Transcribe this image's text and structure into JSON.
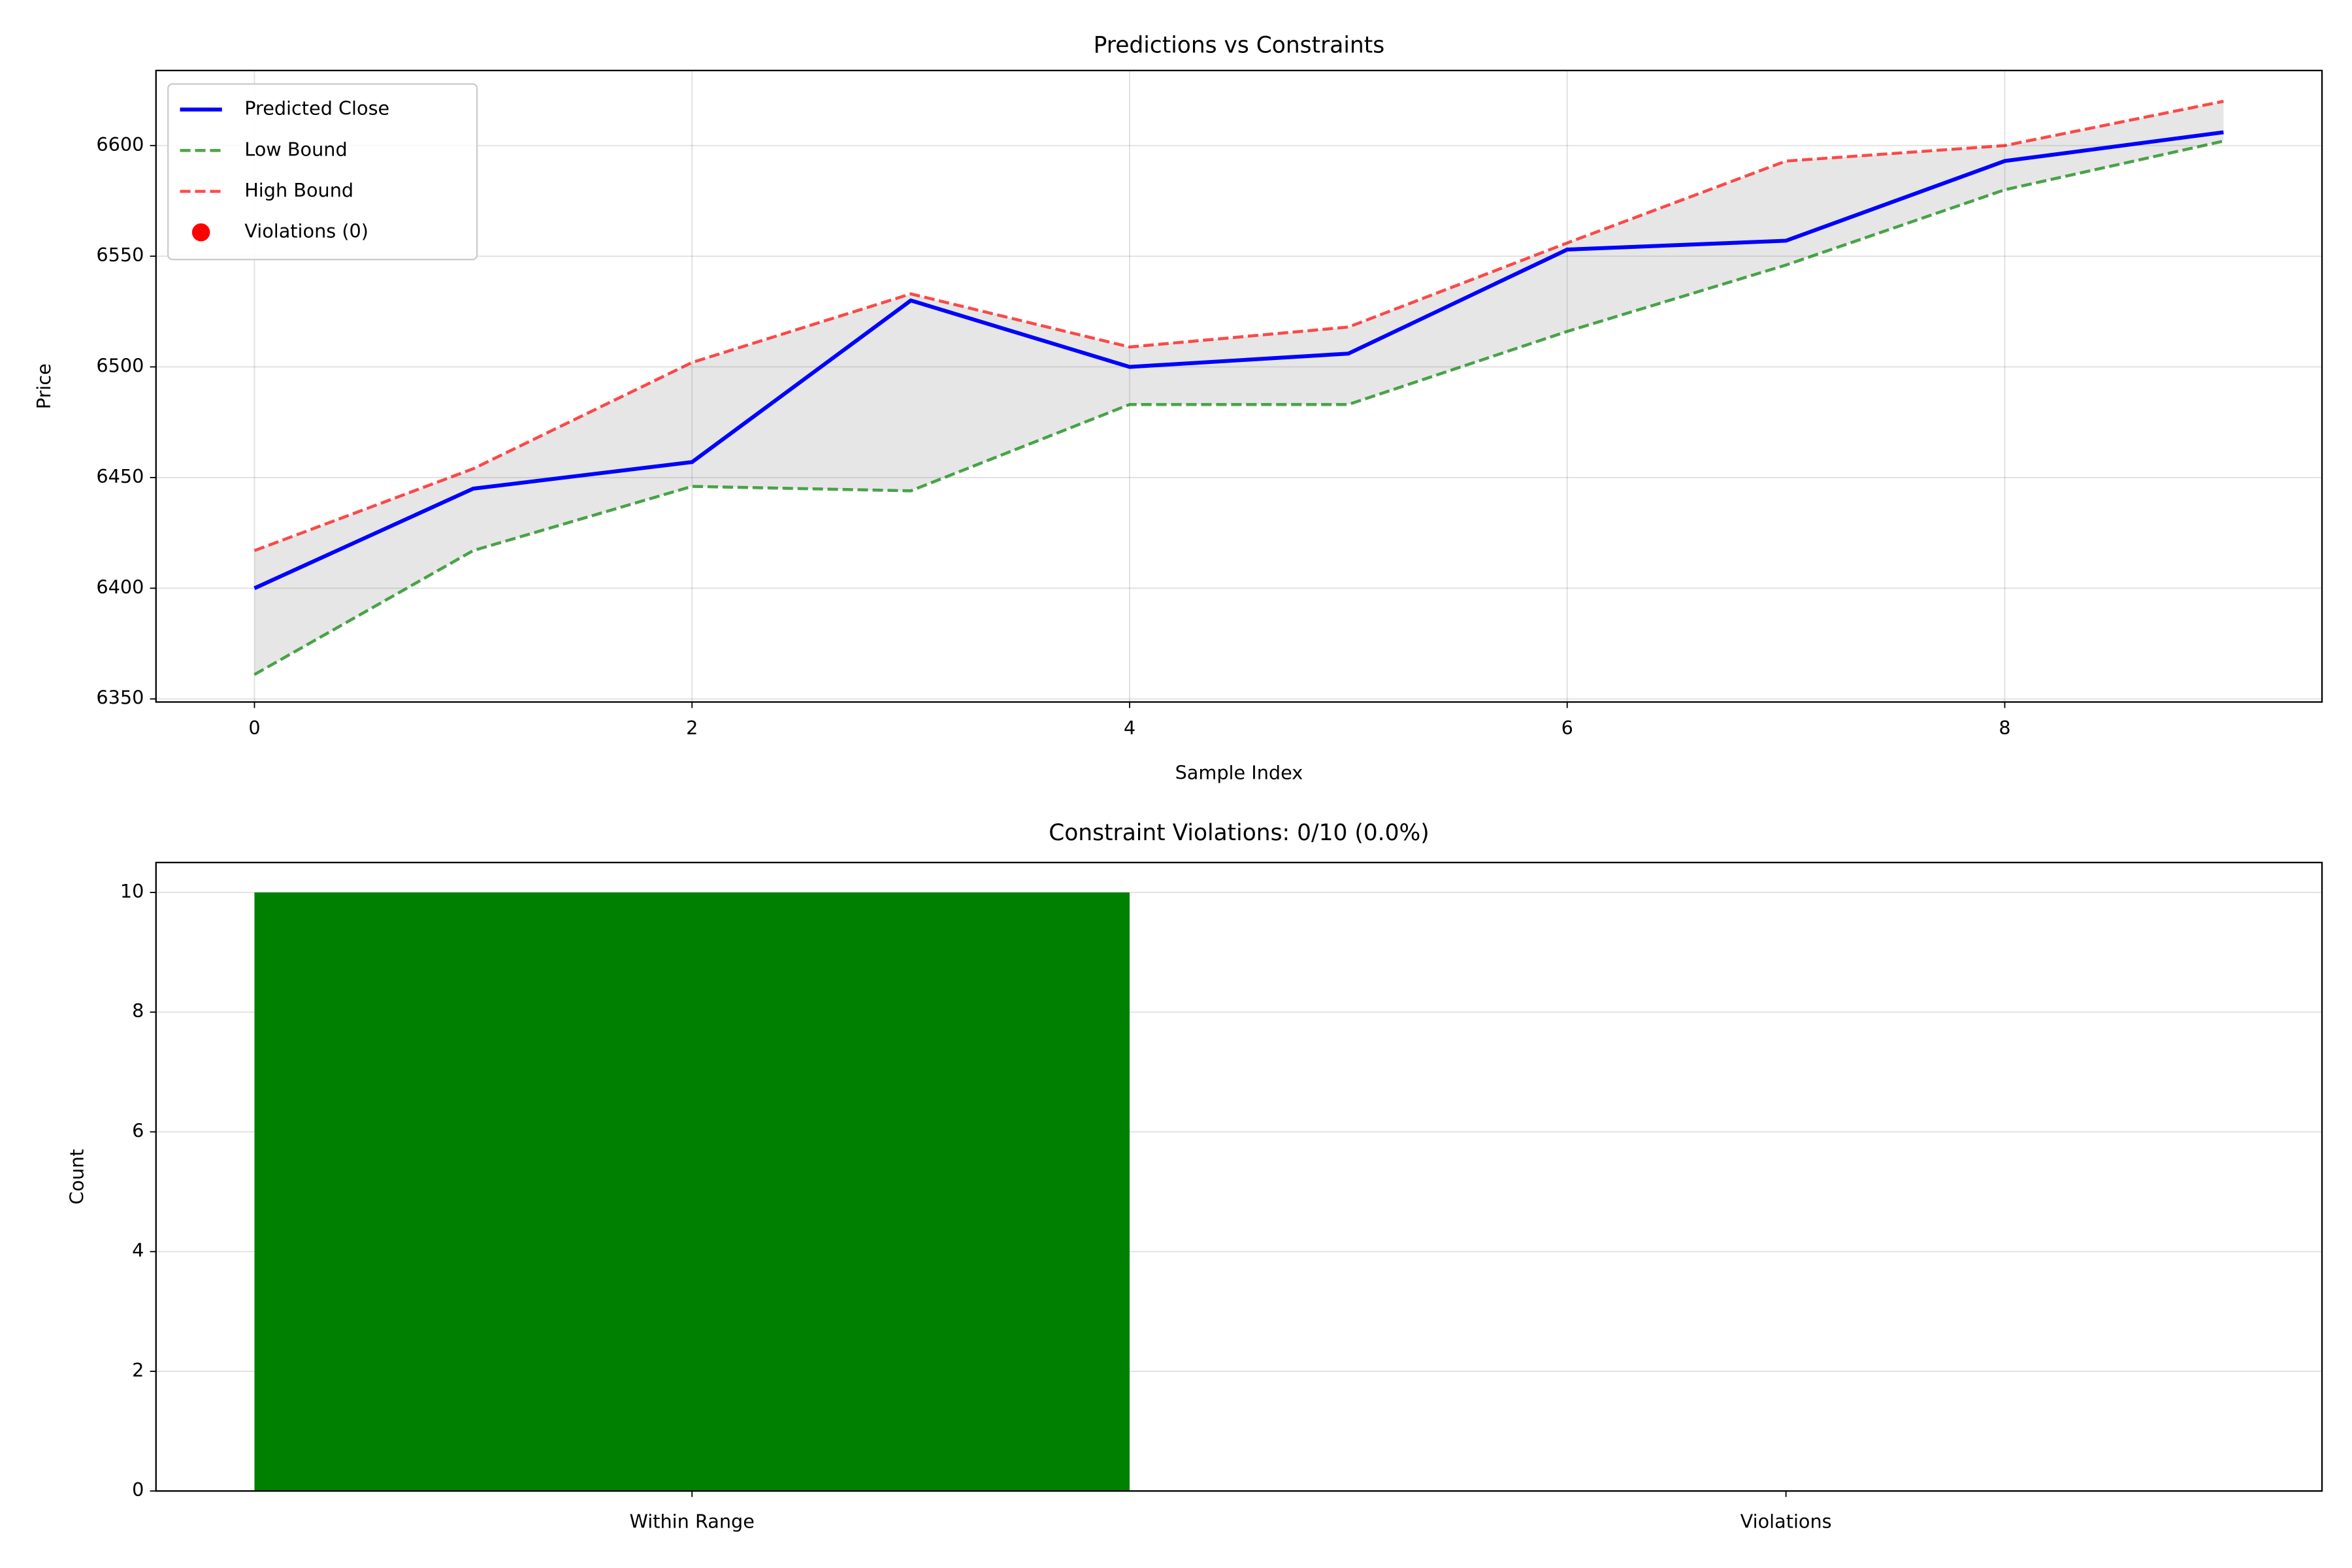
{
  "chart_data": [
    {
      "type": "line",
      "title": "Predictions vs Constraints",
      "xlabel": "Sample Index",
      "ylabel": "Price",
      "x": [
        0,
        1,
        2,
        3,
        4,
        5,
        6,
        7,
        8,
        9
      ],
      "series": [
        {
          "name": "Predicted Close",
          "color": "blue",
          "values": [
            6400,
            6445,
            6457,
            6530,
            6500,
            6506,
            6553,
            6557,
            6593,
            6606
          ]
        },
        {
          "name": "Low Bound",
          "color": "green",
          "alpha": 0.7,
          "linestyle": "dashed",
          "values": [
            6361,
            6417,
            6446,
            6444,
            6483,
            6483,
            6516,
            6546,
            6580,
            6602
          ]
        },
        {
          "name": "High Bound",
          "color": "red",
          "alpha": 0.7,
          "linestyle": "dashed",
          "values": [
            6417,
            6454,
            6502,
            6533,
            6509,
            6518,
            6556,
            6593,
            6600,
            6620
          ]
        },
        {
          "name": "Violations (0)",
          "color": "red",
          "type": "scatter",
          "values": [
            null,
            null,
            null,
            null,
            null,
            null,
            null,
            null,
            null,
            null
          ]
        }
      ],
      "band_fill": {
        "color": "gray",
        "alpha": 0.2
      },
      "xlim": [
        -0.45,
        9.45
      ],
      "xticks": [
        0,
        2,
        4,
        6,
        8
      ],
      "ylim": [
        6348.6,
        6633.9
      ],
      "yticks": [
        6350,
        6400,
        6450,
        6500,
        6550,
        6600
      ],
      "grid": true,
      "legend": "upper left"
    },
    {
      "type": "bar",
      "title": "Constraint Violations: 0/10 (0.0%)",
      "ylabel": "Count",
      "categories": [
        "Within Range",
        "Violations"
      ],
      "values": [
        10,
        0
      ],
      "color": "green",
      "ylim": [
        0,
        10.5
      ],
      "yticks": [
        0,
        2,
        4,
        6,
        8,
        10
      ],
      "grid": true
    }
  ]
}
